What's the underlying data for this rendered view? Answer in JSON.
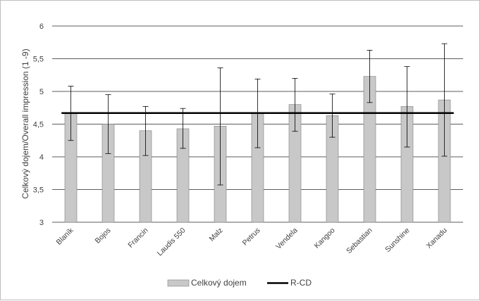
{
  "chart_data": {
    "type": "bar",
    "title": "",
    "xlabel": "",
    "ylabel": "Celkový dojem/Overall impression (1 -9)",
    "ylim": [
      3,
      6
    ],
    "yticks": [
      3,
      3.5,
      4,
      4.5,
      5,
      5.5,
      6
    ],
    "ytick_labels": [
      "3",
      "3,5",
      "4",
      "4,5",
      "5",
      "5,5",
      "6"
    ],
    "grid": true,
    "legend_position": "bottom",
    "categories": [
      "Blaník",
      "Bojos",
      "Francin",
      "Laudis 550",
      "Malz",
      "Petrus",
      "Vendela",
      "Kangoo",
      "Sebastian",
      "Sunshine",
      "Xanadu"
    ],
    "series": [
      {
        "name": "Celkový dojem",
        "values": [
          4.67,
          4.5,
          4.4,
          4.43,
          4.47,
          4.67,
          4.8,
          4.63,
          5.23,
          4.77,
          4.87
        ],
        "error_low": [
          4.25,
          4.05,
          4.02,
          4.13,
          3.57,
          4.14,
          4.39,
          4.3,
          4.83,
          4.15,
          4.01
        ],
        "error_high": [
          5.08,
          4.95,
          4.77,
          4.74,
          5.36,
          5.19,
          5.2,
          4.96,
          5.63,
          5.38,
          5.73
        ],
        "color": "#c8c8c8"
      },
      {
        "name": "R-CD",
        "type": "line",
        "value": 4.67,
        "color": "#000000"
      }
    ]
  }
}
